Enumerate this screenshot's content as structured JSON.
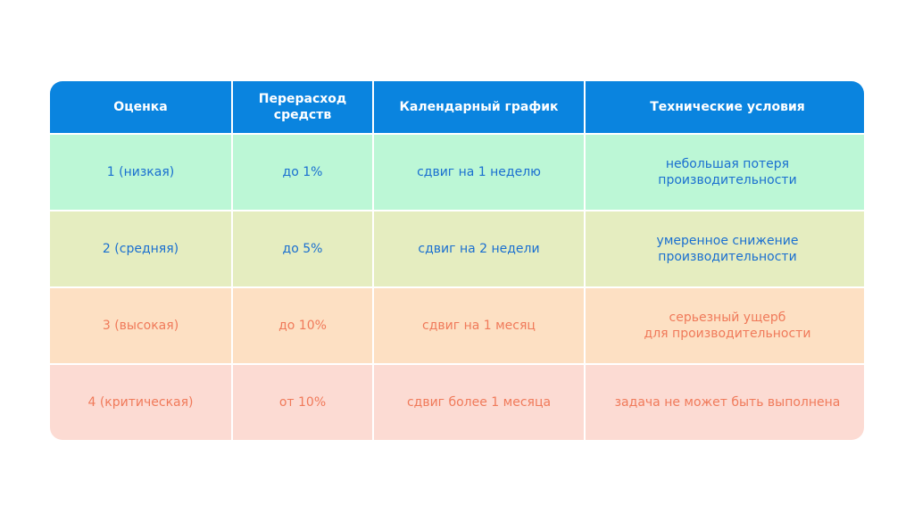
{
  "headers": [
    "Оценка",
    "Перерасход\nсредств",
    "Календарный график",
    "Технические условия"
  ],
  "rows": [
    [
      "1 (низкая)",
      "до 1%",
      "сдвиг на 1 неделю",
      "небольшая потеря\nпроизводительности"
    ],
    [
      "2 (средняя)",
      "до 5%",
      "сдвиг на 2 недели",
      "умеренное снижение\nпроизводительности"
    ],
    [
      "3 (высокая)",
      "до 10%",
      "сдвиг на 1 месяц",
      "серьезный ущерб\nдля производительности"
    ],
    [
      "4 (критическая)",
      "от 10%",
      "сдвиг более 1 месяца",
      "задача не может быть выполнена"
    ]
  ]
}
